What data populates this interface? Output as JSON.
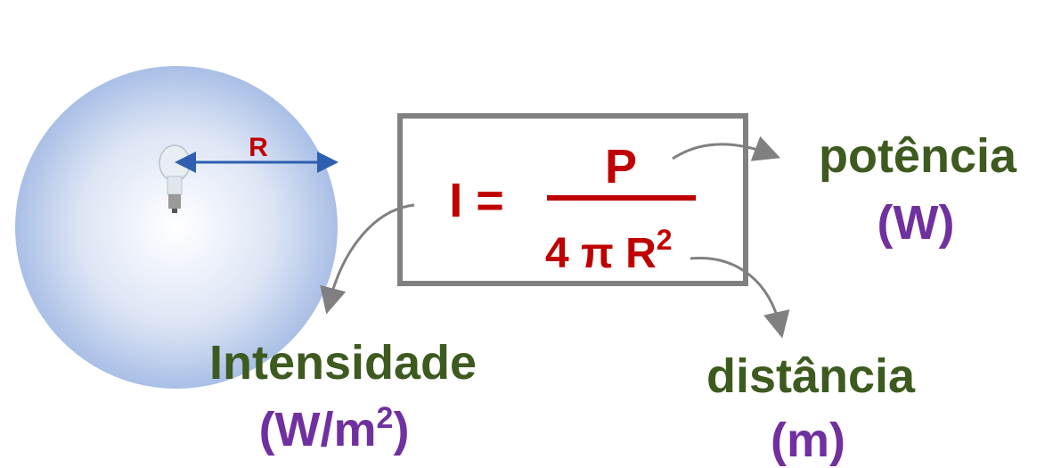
{
  "sphere": {
    "radius_label": "R"
  },
  "formula": {
    "lhs": "I =",
    "numerator": "P",
    "denominator": "4 π R",
    "denominator_exponent": "2"
  },
  "labels": {
    "power": {
      "name": "potência",
      "unit": "(W)"
    },
    "intensity": {
      "name": "Intensidade",
      "unit": "(W/m",
      "unit_exponent": "2",
      "unit_close": ")"
    },
    "distance": {
      "name": "distância",
      "unit": "(m)"
    }
  }
}
